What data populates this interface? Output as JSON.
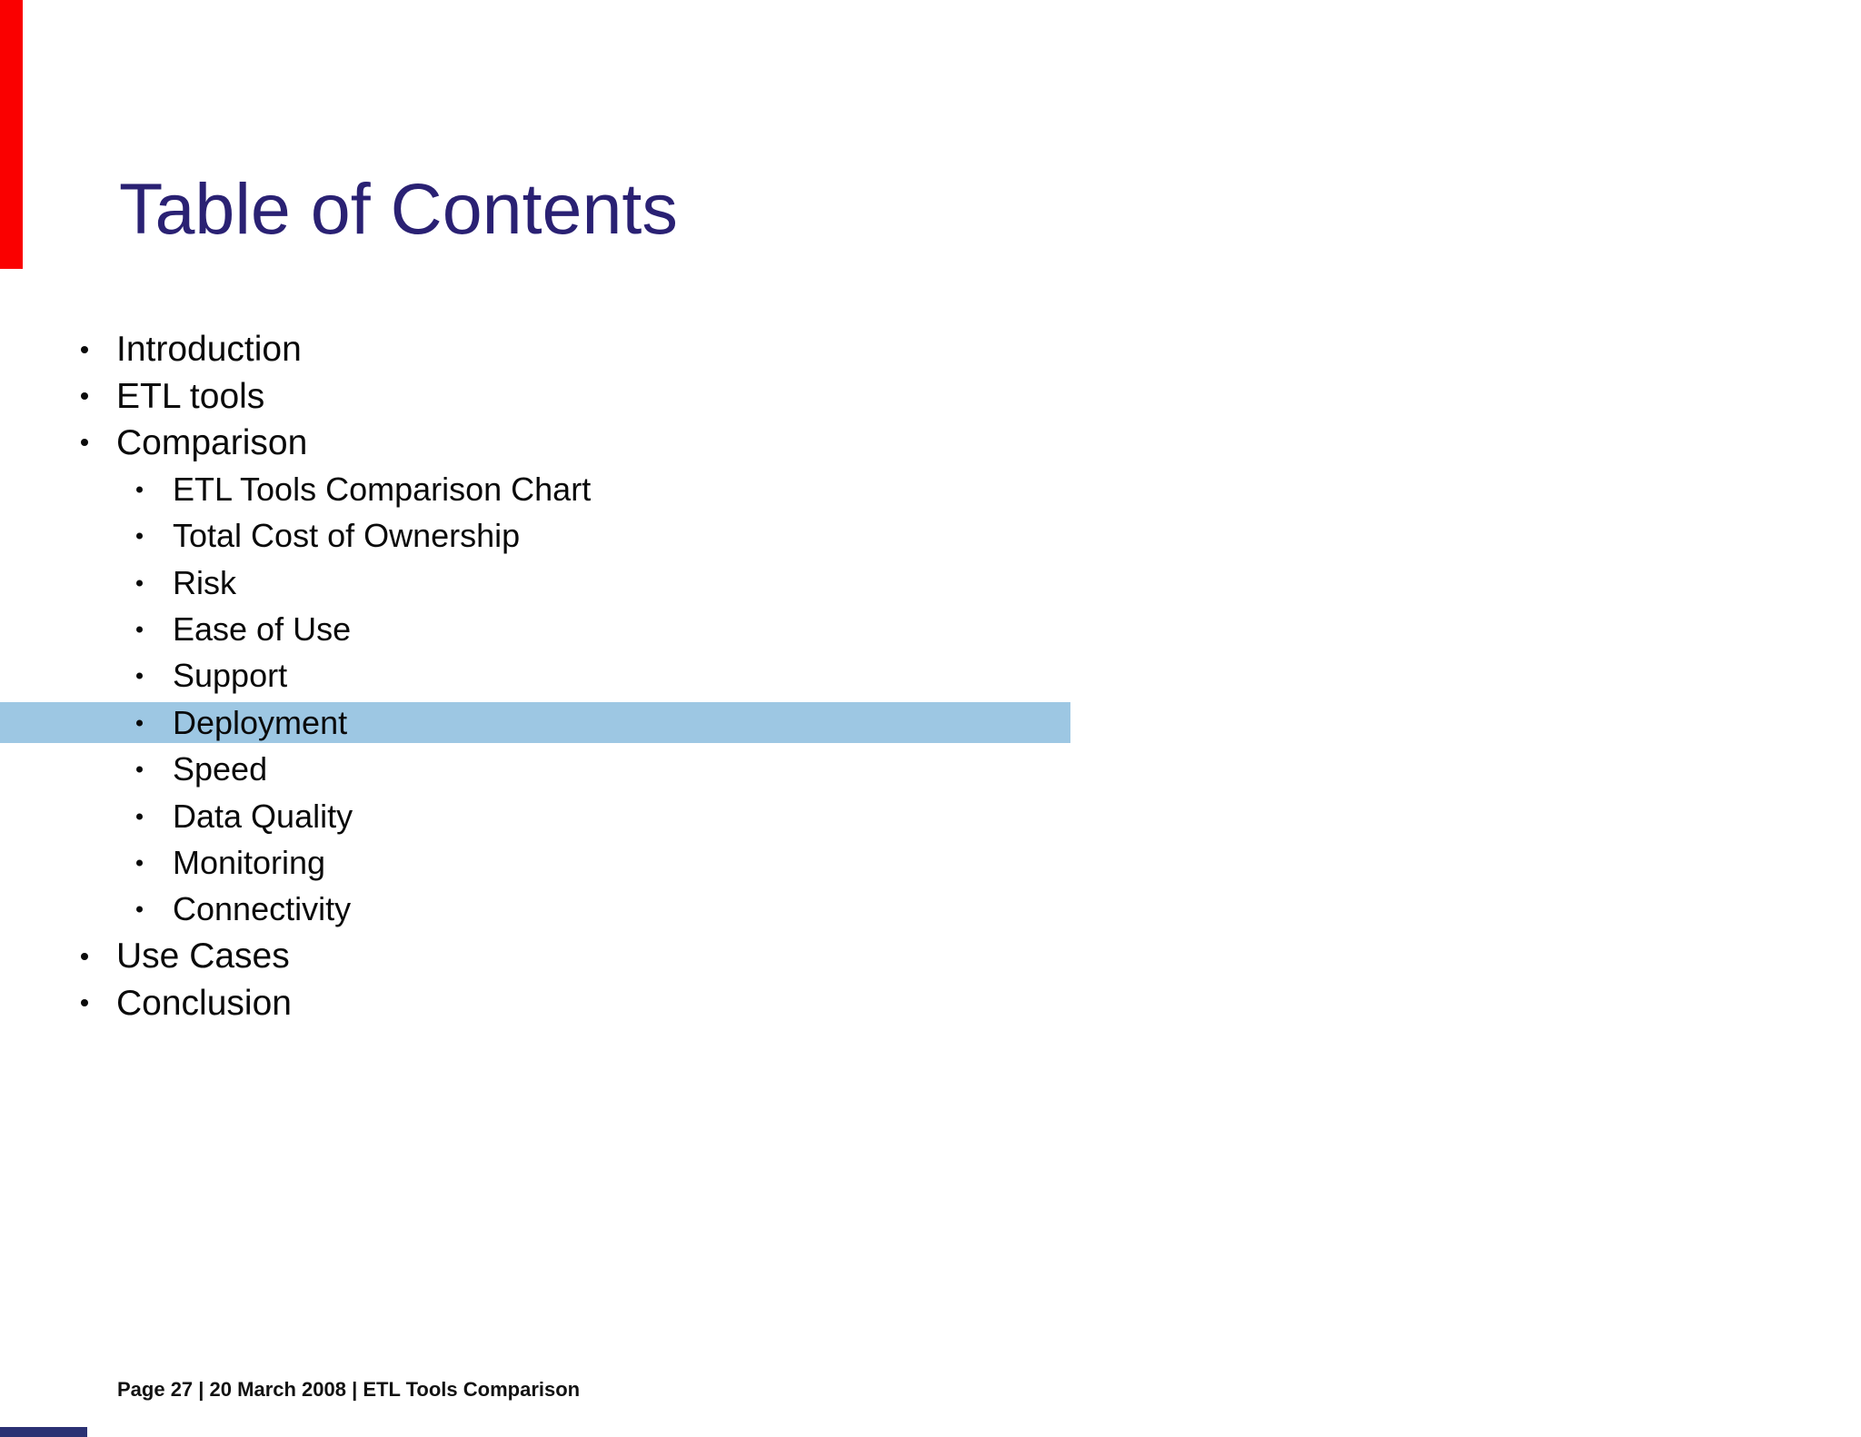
{
  "slide": {
    "title": "Table of Contents",
    "toc_items": [
      {
        "label": "Introduction",
        "level": 1,
        "highlighted": false
      },
      {
        "label": "ETL tools",
        "level": 1,
        "highlighted": false
      },
      {
        "label": "Comparison",
        "level": 1,
        "highlighted": false
      },
      {
        "label": "ETL Tools Comparison Chart",
        "level": 2,
        "highlighted": false
      },
      {
        "label": "Total Cost of Ownership",
        "level": 2,
        "highlighted": false
      },
      {
        "label": "Risk",
        "level": 2,
        "highlighted": false
      },
      {
        "label": "Ease of Use",
        "level": 2,
        "highlighted": false
      },
      {
        "label": "Support",
        "level": 2,
        "highlighted": false
      },
      {
        "label": "Deployment",
        "level": 2,
        "highlighted": true
      },
      {
        "label": "Speed",
        "level": 2,
        "highlighted": false
      },
      {
        "label": "Data Quality",
        "level": 2,
        "highlighted": false
      },
      {
        "label": "Monitoring",
        "level": 2,
        "highlighted": false
      },
      {
        "label": "Connectivity",
        "level": 2,
        "highlighted": false
      },
      {
        "label": "Use Cases",
        "level": 1,
        "highlighted": false
      },
      {
        "label": "Conclusion",
        "level": 1,
        "highlighted": false
      }
    ],
    "footer": {
      "text": "Page 27 | 20 March 2008 | ETL Tools Comparison",
      "segments": [
        "Page 27",
        "20 March 2008",
        "ETL Tools Comparison"
      ],
      "separator": "|"
    },
    "colors": {
      "title_navy": "#2a2173",
      "highlight_blue": "#9dc7e3",
      "accent_red": "#fa0000",
      "bottom_bar_navy": "#2b3173",
      "body_text": "#0a0a0a"
    }
  }
}
